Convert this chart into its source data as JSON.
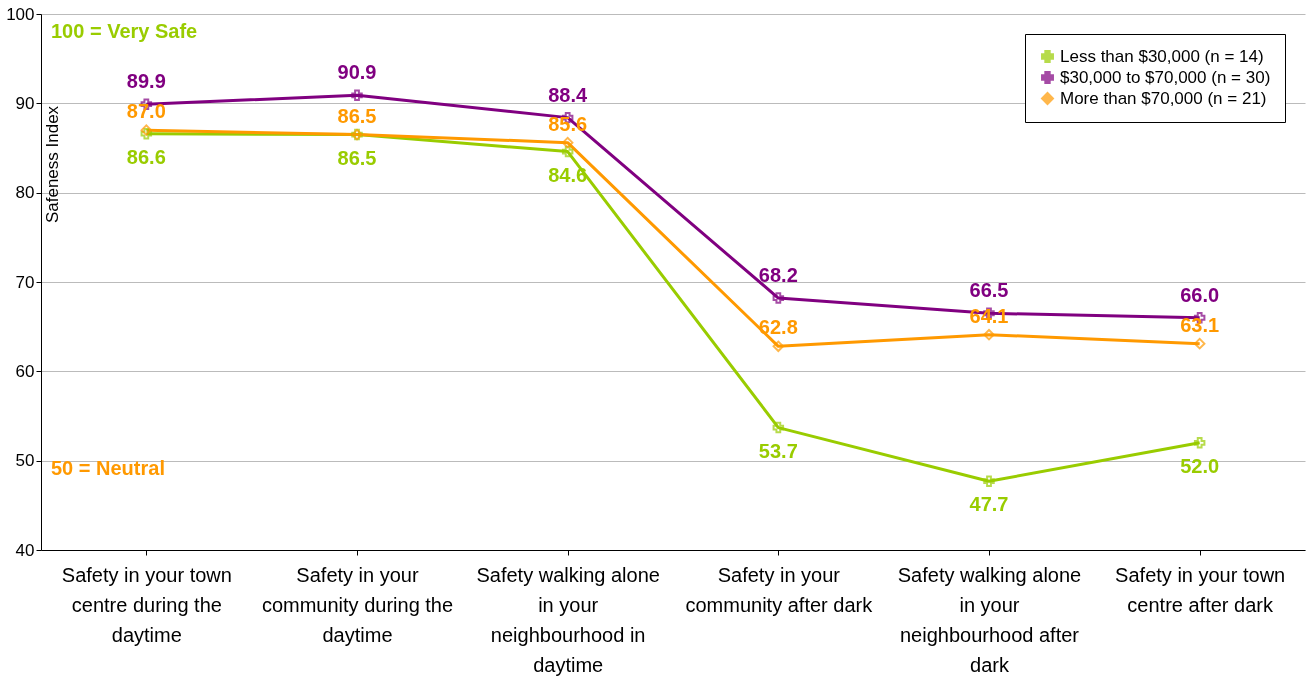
{
  "chart_data": {
    "type": "line",
    "ylabel": "Safeness Index",
    "categories": [
      "Safety in your town centre during the daytime",
      "Safety in your community during the daytime",
      "Safety walking alone in your neighbourhood in daytime",
      "Safety in your community after dark",
      "Safety walking alone in your neighbourhood after dark",
      "Safety in your town centre after dark"
    ],
    "series": [
      {
        "name": "Less than $30,000 (n = 14)",
        "color": "#99cc00",
        "marker": "cross",
        "values": [
          86.6,
          86.5,
          84.6,
          53.7,
          47.7,
          52.0
        ],
        "value_labels": [
          "86.6",
          "86.5",
          "84.6",
          "53.7",
          "47.7",
          "52.0"
        ]
      },
      {
        "name": "$30,000 to $70,000 (n = 30)",
        "color": "#800080",
        "marker": "cross",
        "values": [
          89.9,
          90.9,
          88.4,
          68.2,
          66.5,
          66.0
        ],
        "value_labels": [
          "89.9",
          "90.9",
          "88.4",
          "68.2",
          "66.5",
          "66.0"
        ]
      },
      {
        "name": "More than $70,000 (n = 21)",
        "color": "#ff9900",
        "marker": "diamond",
        "values": [
          87.0,
          86.5,
          85.6,
          62.8,
          64.1,
          63.1
        ],
        "value_labels": [
          "87.0",
          "86.5",
          "85.6",
          "62.8",
          "64.1",
          "63.1"
        ]
      }
    ],
    "ylim": [
      40,
      100
    ],
    "yticks": [
      40,
      50,
      60,
      70,
      80,
      90,
      100
    ],
    "grid": "y",
    "legend": "top right",
    "line_style": "solid",
    "annotations": [
      "100 = Very Safe",
      "50 = Neutral"
    ]
  }
}
